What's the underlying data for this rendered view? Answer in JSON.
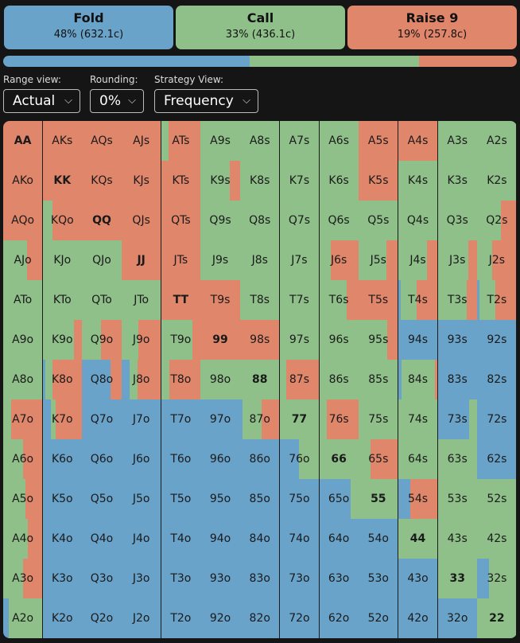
{
  "colors": {
    "fold": "#6aa3c9",
    "call": "#8fc08a",
    "raise": "#e0866a"
  },
  "actions": [
    {
      "title": "Fold",
      "stat": "48% (632.1c)",
      "color": "#6aa3c9"
    },
    {
      "title": "Call",
      "stat": "33% (436.1c)",
      "color": "#8fc08a"
    },
    {
      "title": "Raise 9",
      "stat": "19% (257.8c)",
      "color": "#e0866a"
    }
  ],
  "summary_bar": {
    "fold": 0.48,
    "call": 0.33,
    "raise": 0.19
  },
  "controls": [
    {
      "label": "Range view:",
      "value": "Actual",
      "icon": "chevron-down-icon"
    },
    {
      "label": "Rounding:",
      "value": "0%",
      "icon": "chevron-down-icon"
    },
    {
      "label": "Strategy View:",
      "value": "Frequency",
      "icon": "chevron-down-icon"
    }
  ],
  "grid": {
    "ranks": [
      "A",
      "K",
      "Q",
      "J",
      "T",
      "9",
      "8",
      "7",
      "6",
      "5",
      "4",
      "3",
      "2"
    ],
    "rows": [
      [
        [
          0,
          0,
          1
        ],
        [
          0,
          0,
          1
        ],
        [
          0,
          0,
          1
        ],
        [
          0,
          0,
          1
        ],
        [
          0,
          0.18,
          0.82
        ],
        [
          0,
          1,
          0
        ],
        [
          0,
          1,
          0
        ],
        [
          0,
          1,
          0
        ],
        [
          0,
          1,
          0
        ],
        [
          0,
          0,
          1
        ],
        [
          0,
          0,
          1
        ],
        [
          0,
          1,
          0
        ],
        [
          0,
          1,
          0
        ]
      ],
      [
        [
          0,
          0,
          1
        ],
        [
          0,
          0,
          1
        ],
        [
          0,
          0,
          1
        ],
        [
          0,
          0,
          1
        ],
        [
          0,
          0,
          1
        ],
        [
          0,
          0.74,
          0.26
        ],
        [
          0,
          1,
          0
        ],
        [
          0,
          1,
          0
        ],
        [
          0,
          1,
          0
        ],
        [
          0,
          0,
          1
        ],
        [
          0,
          1,
          0
        ],
        [
          0,
          1,
          0
        ],
        [
          0,
          1,
          0
        ]
      ],
      [
        [
          0,
          0,
          1
        ],
        [
          0,
          0.25,
          0.75
        ],
        [
          0,
          0,
          1
        ],
        [
          0,
          0,
          1
        ],
        [
          0,
          0,
          1
        ],
        [
          0,
          1,
          0
        ],
        [
          0,
          1,
          0
        ],
        [
          0,
          1,
          0
        ],
        [
          0,
          1,
          0
        ],
        [
          0,
          1,
          0
        ],
        [
          0,
          1,
          0
        ],
        [
          0,
          1,
          0
        ],
        [
          0,
          0.6,
          0.4
        ]
      ],
      [
        [
          0,
          0.6,
          0.4
        ],
        [
          0,
          1,
          0
        ],
        [
          0,
          1,
          0
        ],
        [
          0,
          0,
          1
        ],
        [
          0,
          0,
          1
        ],
        [
          0,
          1,
          0
        ],
        [
          0,
          1,
          0
        ],
        [
          0,
          1,
          0
        ],
        [
          0,
          0.3,
          0.7
        ],
        [
          0,
          0.7,
          0.3
        ],
        [
          0,
          0.74,
          0.26
        ],
        [
          0,
          0.78,
          0.22
        ],
        [
          0,
          0.38,
          0.62
        ]
      ],
      [
        [
          0,
          1,
          0
        ],
        [
          0,
          1,
          0
        ],
        [
          0,
          1,
          0
        ],
        [
          0,
          1,
          0
        ],
        [
          0,
          0,
          1
        ],
        [
          0,
          0,
          1
        ],
        [
          0,
          1,
          0
        ],
        [
          0,
          1,
          0
        ],
        [
          0,
          0.7,
          0.3
        ],
        [
          0,
          0,
          1
        ],
        [
          0.06,
          0.4,
          0.54
        ],
        [
          0,
          0.74,
          0.26
        ],
        [
          0.06,
          0.4,
          0.54
        ]
      ],
      [
        [
          0,
          1,
          0
        ],
        [
          0,
          0.8,
          0.2
        ],
        [
          0,
          0.48,
          0.52
        ],
        [
          0,
          0.42,
          0.58
        ],
        [
          0,
          0.8,
          0.2
        ],
        [
          0,
          0,
          1
        ],
        [
          0,
          0,
          1
        ],
        [
          0,
          1,
          0
        ],
        [
          0,
          1,
          0
        ],
        [
          0,
          0.72,
          0.28
        ],
        [
          1,
          0,
          0
        ],
        [
          1,
          0,
          0
        ],
        [
          1,
          0,
          0
        ]
      ],
      [
        [
          0,
          1,
          0
        ],
        [
          0.06,
          0.2,
          0.74
        ],
        [
          0.72,
          0,
          0.28
        ],
        [
          0.2,
          0.2,
          0.6
        ],
        [
          0,
          0.2,
          0.8
        ],
        [
          0,
          1,
          0
        ],
        [
          0,
          1,
          0
        ],
        [
          0,
          0.16,
          0.84
        ],
        [
          0,
          1,
          0
        ],
        [
          0,
          1,
          0
        ],
        [
          0.08,
          0.86,
          0.06
        ],
        [
          1,
          0,
          0
        ],
        [
          1,
          0,
          0
        ]
      ],
      [
        [
          0,
          0.2,
          0.8
        ],
        [
          0.2,
          0.14,
          0.66
        ],
        [
          1,
          0,
          0
        ],
        [
          1,
          0,
          0
        ],
        [
          1,
          0,
          0
        ],
        [
          1,
          0,
          0
        ],
        [
          0.06,
          0.48,
          0.46
        ],
        [
          0,
          1,
          0
        ],
        [
          0,
          0.2,
          0.8
        ],
        [
          0,
          1,
          0
        ],
        [
          0,
          1,
          0
        ],
        [
          0.8,
          0.2,
          0
        ],
        [
          1,
          0,
          0
        ]
      ],
      [
        [
          0,
          0.5,
          0.5
        ],
        [
          1,
          0,
          0
        ],
        [
          1,
          0,
          0
        ],
        [
          1,
          0,
          0
        ],
        [
          1,
          0,
          0
        ],
        [
          1,
          0,
          0
        ],
        [
          1,
          0,
          0
        ],
        [
          0.5,
          0.5,
          0
        ],
        [
          0,
          1,
          0
        ],
        [
          0,
          0.3,
          0.7
        ],
        [
          0,
          1,
          0
        ],
        [
          0,
          1,
          0
        ],
        [
          1,
          0,
          0
        ]
      ],
      [
        [
          0,
          0.56,
          0.44
        ],
        [
          1,
          0,
          0
        ],
        [
          1,
          0,
          0
        ],
        [
          1,
          0,
          0
        ],
        [
          1,
          0,
          0
        ],
        [
          1,
          0,
          0
        ],
        [
          1,
          0,
          0
        ],
        [
          1,
          0,
          0
        ],
        [
          0.8,
          0.2,
          0
        ],
        [
          0,
          1,
          0
        ],
        [
          0.3,
          0,
          0.7
        ],
        [
          0,
          1,
          0
        ],
        [
          0,
          1,
          0
        ]
      ],
      [
        [
          0,
          0.64,
          0.36
        ],
        [
          1,
          0,
          0
        ],
        [
          1,
          0,
          0
        ],
        [
          1,
          0,
          0
        ],
        [
          1,
          0,
          0
        ],
        [
          1,
          0,
          0
        ],
        [
          1,
          0,
          0
        ],
        [
          1,
          0,
          0
        ],
        [
          1,
          0,
          0
        ],
        [
          1,
          0,
          0
        ],
        [
          0,
          1,
          0
        ],
        [
          0,
          1,
          0
        ],
        [
          0,
          1,
          0
        ]
      ],
      [
        [
          0,
          0.5,
          0.5
        ],
        [
          1,
          0,
          0
        ],
        [
          1,
          0,
          0
        ],
        [
          1,
          0,
          0
        ],
        [
          1,
          0,
          0
        ],
        [
          1,
          0,
          0
        ],
        [
          1,
          0,
          0
        ],
        [
          1,
          0,
          0
        ],
        [
          1,
          0,
          0
        ],
        [
          1,
          0,
          0
        ],
        [
          1,
          0,
          0
        ],
        [
          0,
          1,
          0
        ],
        [
          0.3,
          0.7,
          0
        ]
      ],
      [
        [
          0.14,
          0.86,
          0
        ],
        [
          1,
          0,
          0
        ],
        [
          1,
          0,
          0
        ],
        [
          1,
          0,
          0
        ],
        [
          1,
          0,
          0
        ],
        [
          1,
          0,
          0
        ],
        [
          1,
          0,
          0
        ],
        [
          1,
          0,
          0
        ],
        [
          1,
          0,
          0
        ],
        [
          1,
          0,
          0
        ],
        [
          1,
          0,
          0
        ],
        [
          1,
          0,
          0
        ],
        [
          0,
          1,
          0
        ]
      ]
    ]
  }
}
